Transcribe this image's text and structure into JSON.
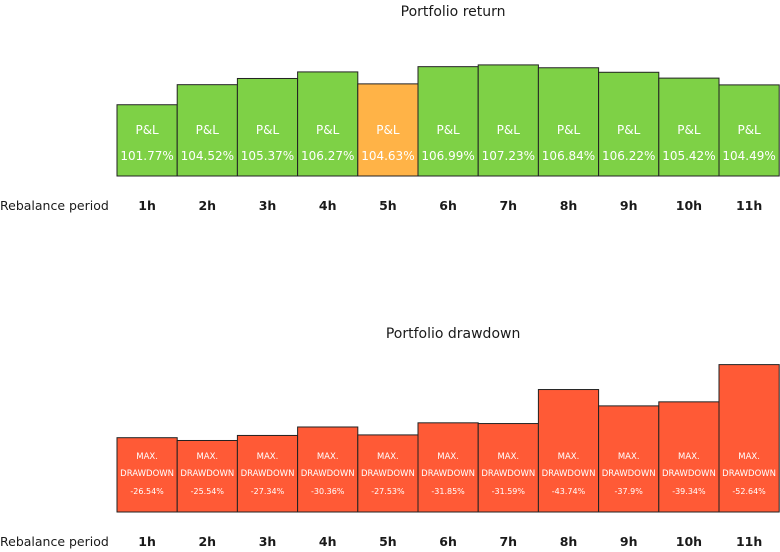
{
  "chart_data": [
    {
      "type": "bar",
      "title": "Portfolio return",
      "row_label": "Rebalance period",
      "categories": [
        "1h",
        "2h",
        "3h",
        "4h",
        "5h",
        "6h",
        "7h",
        "8h",
        "9h",
        "10h",
        "11h"
      ],
      "values": [
        101.77,
        104.52,
        105.37,
        106.27,
        104.63,
        106.99,
        107.23,
        106.84,
        106.22,
        105.42,
        104.49
      ],
      "value_labels": [
        "101.77%",
        "104.52%",
        "105.37%",
        "106.27%",
        "104.63%",
        "106.99%",
        "107.23%",
        "106.84%",
        "106.22%",
        "105.42%",
        "104.49%"
      ],
      "bar_label": "P&L",
      "colors": {
        "default": "#7ed146",
        "highlight": "#ffb347",
        "border": "#222222"
      },
      "highlight_index": 4,
      "ylim": [
        92,
        109
      ]
    },
    {
      "type": "bar",
      "title": "Portfolio drawdown",
      "row_label": "Rebalance period",
      "categories": [
        "1h",
        "2h",
        "3h",
        "4h",
        "5h",
        "6h",
        "7h",
        "8h",
        "9h",
        "10h",
        "11h"
      ],
      "values": [
        -26.54,
        -25.54,
        -27.34,
        -30.36,
        -27.53,
        -31.85,
        -31.59,
        -43.74,
        -37.9,
        -39.34,
        -52.64
      ],
      "value_labels": [
        "-26.54%",
        "-25.54%",
        "-27.34%",
        "-30.36%",
        "-27.53%",
        "-31.85%",
        "-31.59%",
        "-43.74%",
        "-37.9%",
        "-39.34%",
        "-52.64%"
      ],
      "bar_label_lines": [
        "MAX.",
        "DRAWDOWN"
      ],
      "colors": {
        "default": "#ff5a36",
        "border": "#222222"
      },
      "ylim": [
        0,
        60
      ]
    }
  ]
}
